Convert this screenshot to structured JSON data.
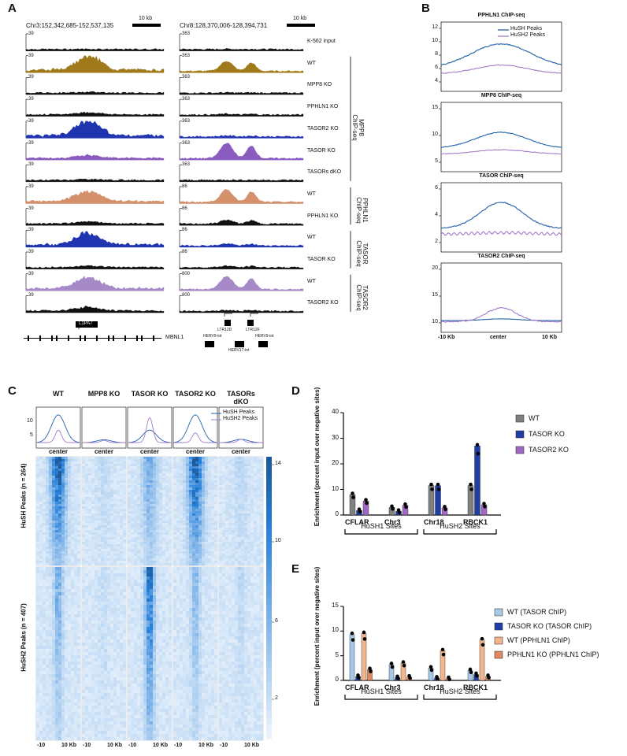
{
  "panels": {
    "A": "A",
    "B": "B",
    "C": "C",
    "D": "D",
    "E": "E"
  },
  "panelA": {
    "locus1": "Chr3:152,342,685-152,537,135",
    "locus2": "Chr8:128,370,006-128,394,731",
    "scale": "10 kb",
    "input_label": "K-562 input",
    "tracks": [
      {
        "label": "WT",
        "max1": "39",
        "max2": "363",
        "color": "#a07a1a",
        "p1": 1.0,
        "p2": 0.65
      },
      {
        "label": "MPP8 KO",
        "max1": "39",
        "max2": "363",
        "color": "#111111",
        "p1": 0.05,
        "p2": 0.02
      },
      {
        "label": "PPHLN1 KO",
        "max1": "39",
        "max2": "363",
        "color": "#111111",
        "p1": 0.15,
        "p2": 0.05
      },
      {
        "label": "TASOR2 KO",
        "max1": "39",
        "max2": "363",
        "color": "#2034b0",
        "p1": 1.0,
        "p2": 0.06
      },
      {
        "label": "TASOR KO",
        "max1": "39",
        "max2": "363",
        "color": "#8a5cc0",
        "p1": 0.2,
        "p2": 1.0
      },
      {
        "label": "TASORs dKO",
        "max1": "39",
        "max2": "363",
        "color": "#111111",
        "p1": 0.06,
        "p2": 0.02
      },
      {
        "label": "WT",
        "max1": "39",
        "max2": "86",
        "color": "#d4906a",
        "p1": 0.7,
        "p2": 0.8
      },
      {
        "label": "PPHLN1 KO",
        "max1": "39",
        "max2": "86",
        "color": "#111111",
        "p1": 0.15,
        "p2": 0.25
      },
      {
        "label": "WT",
        "max1": "39",
        "max2": "86",
        "color": "#2034b0",
        "p1": 0.8,
        "p2": 0.12
      },
      {
        "label": "TASOR KO",
        "max1": "39",
        "max2": "86",
        "color": "#111111",
        "p1": 0.1,
        "p2": 0.1
      },
      {
        "label": "WT",
        "max1": "39",
        "max2": "800",
        "color": "#a68ac8",
        "p1": 0.8,
        "p2": 0.85
      },
      {
        "label": "TASOR2 KO",
        "max1": "39",
        "max2": "800",
        "color": "#111111",
        "p1": 0.25,
        "p2": 0.05
      }
    ],
    "input_max1": "39",
    "input_max2": "363",
    "groups": [
      {
        "line1": "MPP8",
        "line2": "ChIP-seq"
      },
      {
        "line1": "PPHLN1",
        "line2": "ChIP-seq"
      },
      {
        "line1": "TASOR",
        "line2": "ChIP-seq"
      },
      {
        "line1": "TASOR2",
        "line2": "ChIP-seq"
      }
    ],
    "gene1": "L1PA7",
    "gene2": "MBNL1",
    "ltr_labels": [
      "LTR12D",
      "LTR12F"
    ],
    "herv_labels": [
      "HERV9-int",
      "HERV9-int",
      "HERV17-int"
    ]
  },
  "panelB": {
    "plots": [
      {
        "title": "PPHLN1 ChIP-seq",
        "yticks": [
          "12",
          "10",
          "8",
          "6",
          "4"
        ]
      },
      {
        "title": "MPP8 ChIP-seq",
        "yticks": [
          "15",
          "10",
          "5"
        ]
      },
      {
        "title": "TASOR ChIP-seq",
        "yticks": [
          "6",
          "4",
          "2"
        ]
      },
      {
        "title": "TASOR2 ChIP-seq",
        "yticks": [
          "20",
          "15",
          "10"
        ]
      }
    ],
    "legend": [
      "HuSH Peaks",
      "HuSH2 Peaks"
    ],
    "xlabels": [
      "-10 Kb",
      "center",
      "10 Kb"
    ],
    "colors": {
      "hush": "#1f5fa8",
      "hush2": "#a37bc9"
    }
  },
  "panelC": {
    "columns": [
      "WT",
      "MPP8 KO",
      "TASOR KO",
      "TASOR2 KO",
      "TASORs dKO"
    ],
    "yticks": [
      "10",
      "5"
    ],
    "center": "center",
    "legend": [
      "HuSH Peaks",
      "HuSH2 Peaks"
    ],
    "row_labels": [
      "HuSH Peaks (n = 264)",
      "HuSH2 Peaks (n = 407)"
    ],
    "xlabels": [
      "-10",
      "10 Kb"
    ],
    "colorbar": [
      "14",
      "10",
      "6",
      "2"
    ]
  },
  "chart_data": [
    {
      "type": "bar",
      "panel": "D",
      "categories": [
        "CFLAR",
        "Chr3",
        "Chr18",
        "RBCK1"
      ],
      "groups": [
        "HuSH1 Sites",
        "HuSH2 Sites"
      ],
      "series": [
        {
          "name": "WT",
          "color": "#808080",
          "values": [
            8.0,
            3.0,
            11.5,
            11.5
          ]
        },
        {
          "name": "TASOR KO",
          "color": "#1f3fa6",
          "values": [
            1.8,
            1.5,
            11.5,
            27.0
          ]
        },
        {
          "name": "TASOR2 KO",
          "color": "#a267c4",
          "values": [
            5.5,
            3.8,
            2.8,
            4.0
          ]
        }
      ],
      "ylabel": "Enrichment (percent input over negative sites)",
      "yticks": [
        "0",
        "10",
        "20",
        "30",
        "40"
      ],
      "ylim": [
        0,
        40
      ]
    },
    {
      "type": "bar",
      "panel": "E",
      "categories": [
        "CFLAR",
        "Chr3",
        "Chr18",
        "RBCK1"
      ],
      "groups": [
        "HuSH1 Sites",
        "HuSH2 Sites"
      ],
      "series": [
        {
          "name": "WT (TASOR ChIP)",
          "color": "#a8c8e8",
          "values": [
            9.3,
            3.2,
            2.5,
            2.0
          ]
        },
        {
          "name": "TASOR KO (TASOR ChIP)",
          "color": "#1f3fa6",
          "values": [
            0.8,
            0.6,
            0.5,
            1.2
          ]
        },
        {
          "name": "WT (PPHLN1 ChIP)",
          "color": "#f4b48c",
          "values": [
            9.5,
            3.5,
            6.0,
            8.2
          ]
        },
        {
          "name": "PPHLN1 KO (PPHLN1 ChIP)",
          "color": "#e0895f",
          "values": [
            2.2,
            0.7,
            0.4,
            0.8
          ]
        }
      ],
      "ylabel": "Enrichment (percent input over negative sites)",
      "yticks": [
        "0",
        "5",
        "10",
        "15"
      ],
      "ylim": [
        0,
        15
      ]
    }
  ]
}
